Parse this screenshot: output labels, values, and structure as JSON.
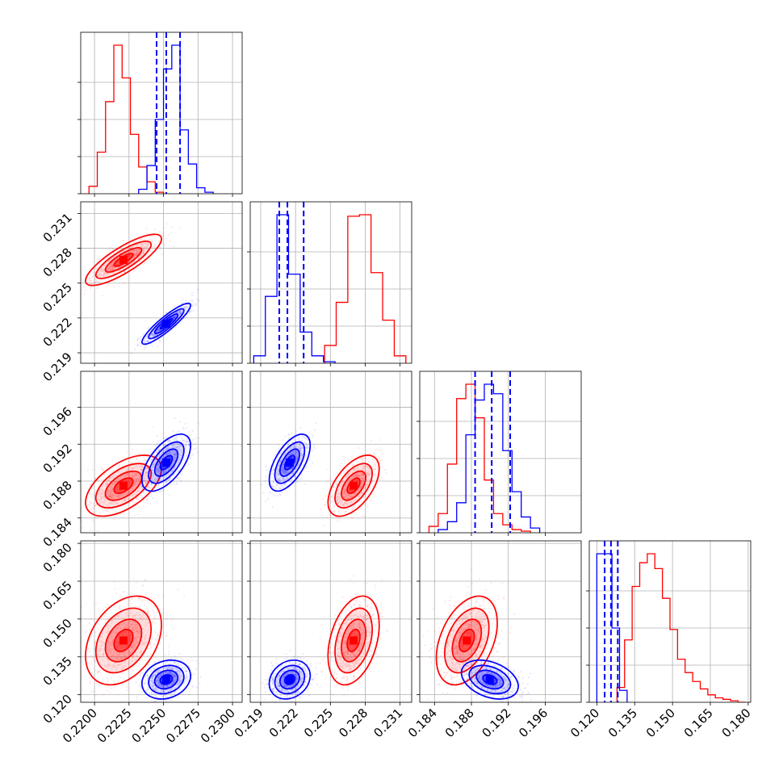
{
  "chart_data": {
    "type": "corner",
    "title": "",
    "grid": true,
    "parameters": [
      {
        "index": 0,
        "range": [
          0.219,
          0.2307
        ],
        "ticks": [
          {
            "v": 0.22,
            "label": "0.2200"
          },
          {
            "v": 0.2225,
            "label": "0.2225"
          },
          {
            "v": 0.225,
            "label": "0.2250"
          },
          {
            "v": 0.2275,
            "label": "0.2275"
          },
          {
            "v": 0.23,
            "label": "0.2300"
          }
        ]
      },
      {
        "index": 1,
        "range": [
          0.2181,
          0.232
        ],
        "ticks": [
          {
            "v": 0.219,
            "label": "0.219"
          },
          {
            "v": 0.222,
            "label": "0.222"
          },
          {
            "v": 0.225,
            "label": "0.225"
          },
          {
            "v": 0.228,
            "label": "0.228"
          },
          {
            "v": 0.231,
            "label": "0.231"
          }
        ]
      },
      {
        "index": 2,
        "range": [
          0.1824,
          0.1999
        ],
        "ticks": [
          {
            "v": 0.184,
            "label": "0.184"
          },
          {
            "v": 0.188,
            "label": "0.188"
          },
          {
            "v": 0.192,
            "label": "0.192"
          },
          {
            "v": 0.196,
            "label": "0.196"
          }
        ]
      },
      {
        "index": 3,
        "range": [
          0.117,
          0.181
        ],
        "ticks": [
          {
            "v": 0.12,
            "label": "0.120"
          },
          {
            "v": 0.135,
            "label": "0.135"
          },
          {
            "v": 0.15,
            "label": "0.150"
          },
          {
            "v": 0.165,
            "label": "0.165"
          },
          {
            "v": 0.18,
            "label": "0.180"
          }
        ]
      }
    ],
    "series": [
      {
        "color": "#ff0000",
        "mean": [
          0.2221,
          0.227,
          0.1875,
          0.1415
        ],
        "std": [
          0.00125,
          0.001,
          0.0015,
          0.008
        ],
        "histograms": [
          {
            "edges": [
              0.2196,
              0.2202,
              0.2208,
              0.2214,
              0.222,
              0.2226,
              0.2232,
              0.2238,
              0.2244,
              0.225
            ],
            "values": [
              5,
              28,
              62,
              100,
              78,
              40,
              18,
              8,
              1
            ]
          },
          {
            "edges": [
              0.2245,
              0.2255,
              0.2265,
              0.2275,
              0.2285,
              0.2295,
              0.2305,
              0.2315
            ],
            "values": [
              12,
              41,
              99,
              100,
              61,
              29,
              5
            ]
          },
          {
            "edges": [
              0.1834,
              0.1844,
              0.1854,
              0.1864,
              0.1874,
              0.1884,
              0.1894,
              0.1904,
              0.1914,
              0.1924,
              0.1934,
              0.1944
            ],
            "values": [
              4,
              12,
              43,
              84,
              93,
              72,
              33,
              12,
              5,
              2,
              1
            ]
          },
          {
            "edges": [
              0.128,
              0.131,
              0.134,
              0.137,
              0.14,
              0.143,
              0.146,
              0.149,
              0.152,
              0.155,
              0.158,
              0.161,
              0.164,
              0.167,
              0.17,
              0.173,
              0.176,
              0.179
            ],
            "values": [
              10,
              42,
              78,
              94,
              100,
              90,
              70,
              49,
              29,
              20,
              14,
              9,
              5,
              3,
              2,
              1,
              0
            ]
          }
        ]
      },
      {
        "color": "#0000ff",
        "mean": [
          0.2252,
          0.2215,
          0.19,
          0.126
        ],
        "std": [
          0.0008,
          0.0008,
          0.0014,
          0.0035
        ],
        "quantiles": [
          [
            0.2245,
            0.2252,
            0.2262
          ],
          [
            0.2206,
            0.2213,
            0.2227
          ],
          [
            0.1884,
            0.1902,
            0.1922
          ],
          [
            0.1231,
            0.1256,
            0.1283
          ]
        ],
        "histograms": [
          {
            "edges": [
              0.2232,
              0.2238,
              0.2244,
              0.225,
              0.2256,
              0.2262,
              0.2268,
              0.2274,
              0.228,
              0.2286
            ],
            "values": [
              3,
              19,
              50,
              84,
              100,
              43,
              20,
              4,
              1
            ]
          },
          {
            "edges": [
              0.2184,
              0.2194,
              0.2204,
              0.2214,
              0.2224,
              0.2234,
              0.2244,
              0.2254
            ],
            "values": [
              5,
              45,
              100,
              60,
              21,
              5,
              1
            ]
          },
          {
            "edges": [
              0.1844,
              0.1854,
              0.1864,
              0.1874,
              0.1884,
              0.1894,
              0.1904,
              0.1914,
              0.1924,
              0.1934,
              0.1944,
              0.1954
            ],
            "values": [
              2,
              7,
              19,
              62,
              84,
              94,
              88,
              52,
              26,
              10,
              3
            ]
          },
          {
            "edges": [
              0.12,
              0.123,
              0.126,
              0.129,
              0.132
            ],
            "values": [
              100,
              100,
              50,
              8
            ]
          }
        ]
      }
    ]
  }
}
